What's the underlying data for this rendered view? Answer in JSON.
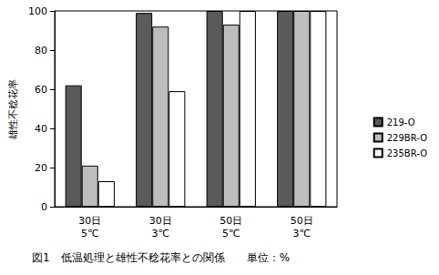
{
  "chart_data": {
    "type": "bar",
    "title": "図1　低温処理と雄性不稔花率との関係　　単位：%",
    "y_label": "雄性不稔花率",
    "categories": [
      "30日\n5℃",
      "30日\n3℃",
      "50日\n5℃",
      "50日\n3℃"
    ],
    "series": [
      {
        "name": "219-O",
        "color": "#5a5a5a",
        "values": [
          62,
          99,
          100,
          100
        ]
      },
      {
        "name": "229BR-O",
        "color": "#bdbdbd",
        "values": [
          21,
          92,
          93,
          100
        ]
      },
      {
        "name": "235BR-O",
        "color": "#ffffff",
        "values": [
          13,
          59,
          100,
          100
        ]
      }
    ],
    "ylim": [
      0,
      100
    ],
    "yticks": [
      0,
      20,
      40,
      60,
      80,
      100
    ],
    "grid": false,
    "legend": "right"
  }
}
